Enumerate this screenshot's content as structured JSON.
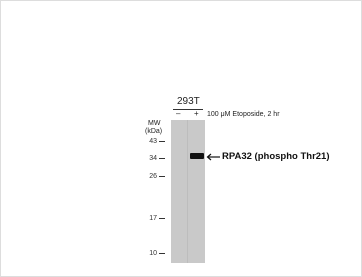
{
  "cell_line": "293T",
  "lanes": [
    "–",
    "+"
  ],
  "treatment": "100 μM Etoposide, 2 hr",
  "mw": {
    "title": "MW",
    "unit": "(kDa)",
    "markers": [
      "43",
      "34",
      "26",
      "17",
      "10"
    ]
  },
  "band_label": "RPA32 (phospho Thr21)"
}
